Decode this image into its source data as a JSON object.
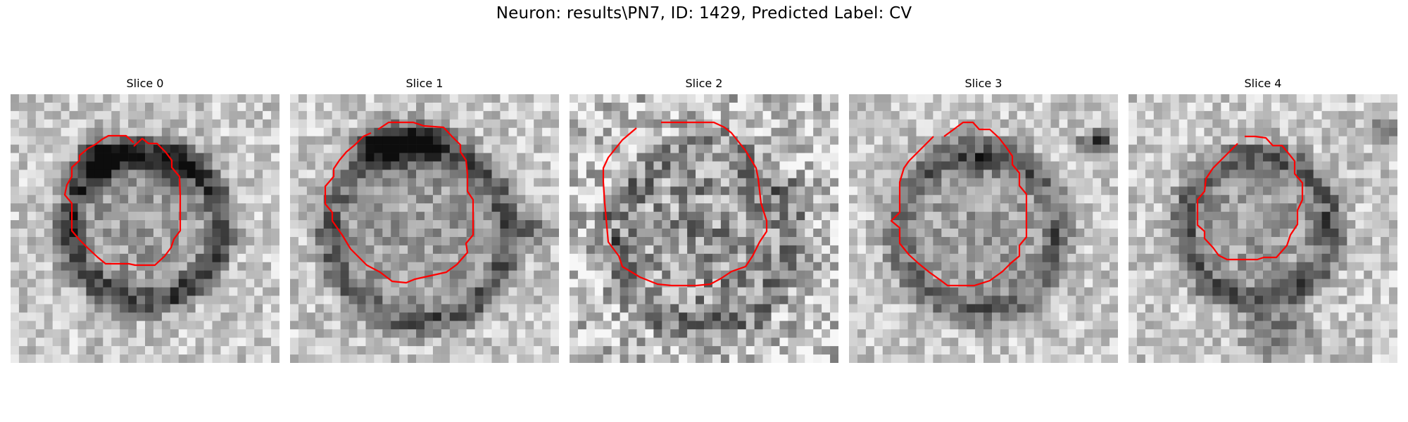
{
  "figure": {
    "title": "Neuron: results\\PN7, ID: 1429, Predicted Label: CV",
    "contour_color": "#ff0000"
  },
  "panels": [
    {
      "title": "Slice 0"
    },
    {
      "title": "Slice 1"
    },
    {
      "title": "Slice 2"
    },
    {
      "title": "Slice 3"
    },
    {
      "title": "Slice 4"
    }
  ]
}
